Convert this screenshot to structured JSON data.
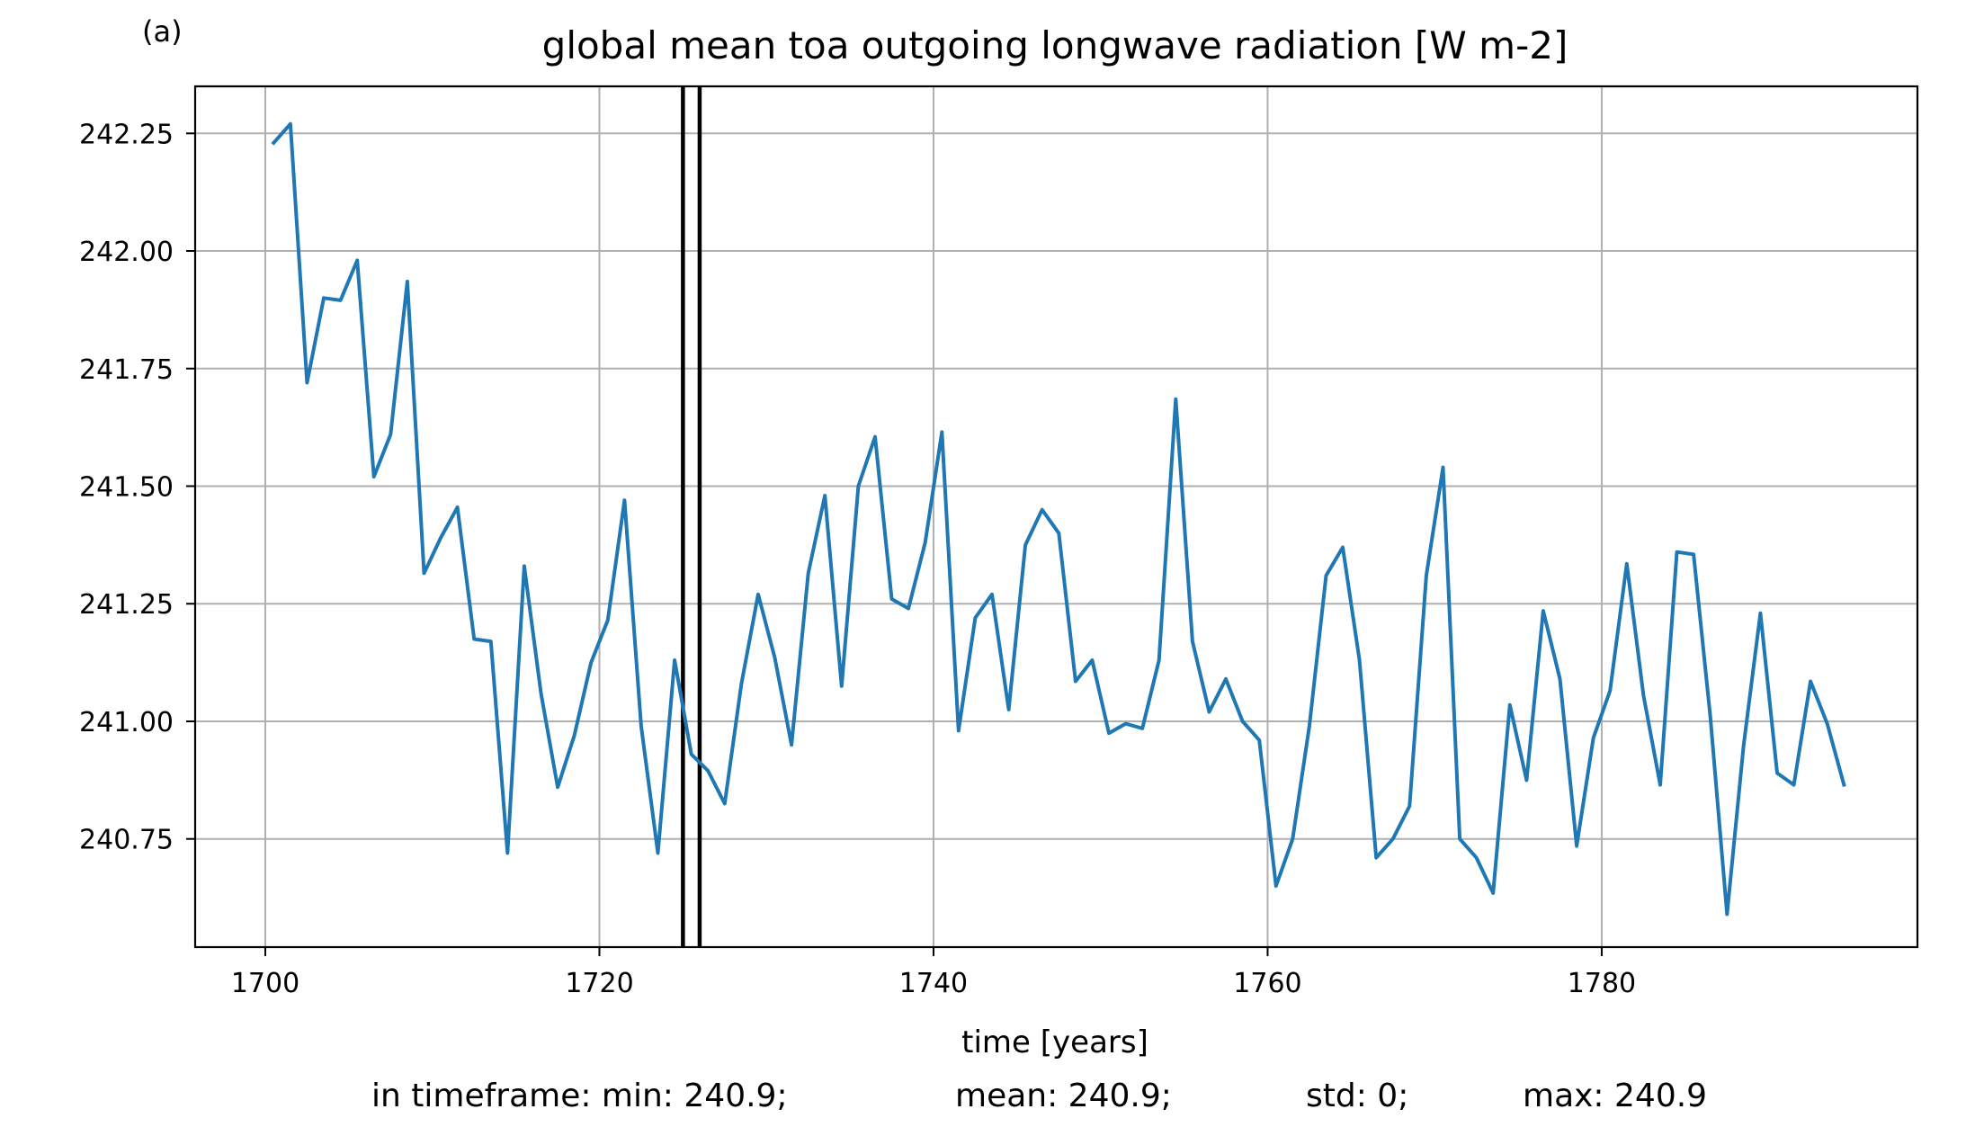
{
  "panel_label": "(a)",
  "colors": {
    "series": "#1f77b4",
    "grid": "#b0b0b0",
    "vlines": "#000000"
  },
  "chart_data": {
    "type": "line",
    "title": "global mean toa outgoing longwave radiation [W m-2]",
    "xlabel": "time [years]",
    "ylabel": "",
    "xlim": [
      1695.8,
      1798.9
    ],
    "ylim": [
      240.52,
      242.35
    ],
    "xticks": [
      1700,
      1720,
      1740,
      1760,
      1780
    ],
    "yticks": [
      240.75,
      241.0,
      241.25,
      241.5,
      241.75,
      242.0,
      242.25
    ],
    "ytick_labels": [
      "240.75",
      "241.00",
      "241.25",
      "241.50",
      "241.75",
      "242.00",
      "242.25"
    ],
    "grid": true,
    "vertical_lines": [
      1725.0,
      1726.0
    ],
    "series": [
      {
        "x": [
          1700.5,
          1701.5,
          1702.5,
          1703.5,
          1704.5,
          1705.5,
          1706.5,
          1707.5,
          1708.5,
          1709.5,
          1710.5,
          1711.5,
          1712.5,
          1713.5,
          1714.5,
          1715.5,
          1716.5,
          1717.5,
          1718.5,
          1719.5,
          1720.5,
          1721.5,
          1722.5,
          1723.5,
          1724.5,
          1725.5,
          1726.5,
          1727.5,
          1728.5,
          1729.5,
          1730.5,
          1731.5,
          1732.5,
          1733.5,
          1734.5,
          1735.5,
          1736.5,
          1737.5,
          1738.5,
          1739.5,
          1740.5,
          1741.5,
          1742.5,
          1743.5,
          1744.5,
          1745.5,
          1746.5,
          1747.5,
          1748.5,
          1749.5,
          1750.5,
          1751.5,
          1752.5,
          1753.5,
          1754.5,
          1755.5,
          1756.5,
          1757.5,
          1758.5,
          1759.5,
          1760.5,
          1761.5,
          1762.5,
          1763.5,
          1764.5,
          1765.5,
          1766.5,
          1767.5,
          1768.5,
          1769.5,
          1770.5,
          1771.5,
          1772.5,
          1773.5,
          1774.5,
          1775.5,
          1776.5,
          1777.5,
          1778.5,
          1779.5,
          1780.5,
          1781.5,
          1782.5,
          1783.5,
          1784.5,
          1785.5,
          1786.5,
          1787.5,
          1788.5,
          1789.5,
          1790.5,
          1791.5,
          1792.5,
          1793.5,
          1794.5
        ],
        "y": [
          242.23,
          242.27,
          241.72,
          241.9,
          241.895,
          241.98,
          241.52,
          241.61,
          241.935,
          241.315,
          241.39,
          241.455,
          241.175,
          241.17,
          240.72,
          241.33,
          241.06,
          240.86,
          240.97,
          241.125,
          241.215,
          241.47,
          240.99,
          240.72,
          241.13,
          240.93,
          240.895,
          240.825,
          241.08,
          241.27,
          241.135,
          240.95,
          241.315,
          241.48,
          241.075,
          241.5,
          241.605,
          241.26,
          241.24,
          241.38,
          241.615,
          240.98,
          241.22,
          241.27,
          241.025,
          241.375,
          241.45,
          241.4,
          241.085,
          241.13,
          240.975,
          240.995,
          240.985,
          241.13,
          241.685,
          241.17,
          241.02,
          241.09,
          241.0,
          240.96,
          240.65,
          240.75,
          240.99,
          241.31,
          241.37,
          241.13,
          240.71,
          240.75,
          240.82,
          241.31,
          241.54,
          240.75,
          240.71,
          240.635,
          241.035,
          240.875,
          241.235,
          241.09,
          240.735,
          240.965,
          241.065,
          241.335,
          241.055,
          240.865,
          241.36,
          241.355,
          241.01,
          240.59,
          240.95,
          241.23,
          240.89,
          240.865,
          241.085,
          240.995,
          240.865
        ]
      }
    ]
  },
  "stats": {
    "min": "in timeframe: min: 240.9;",
    "mean": "mean: 240.9;",
    "std": "std: 0;",
    "max": "max: 240.9"
  }
}
